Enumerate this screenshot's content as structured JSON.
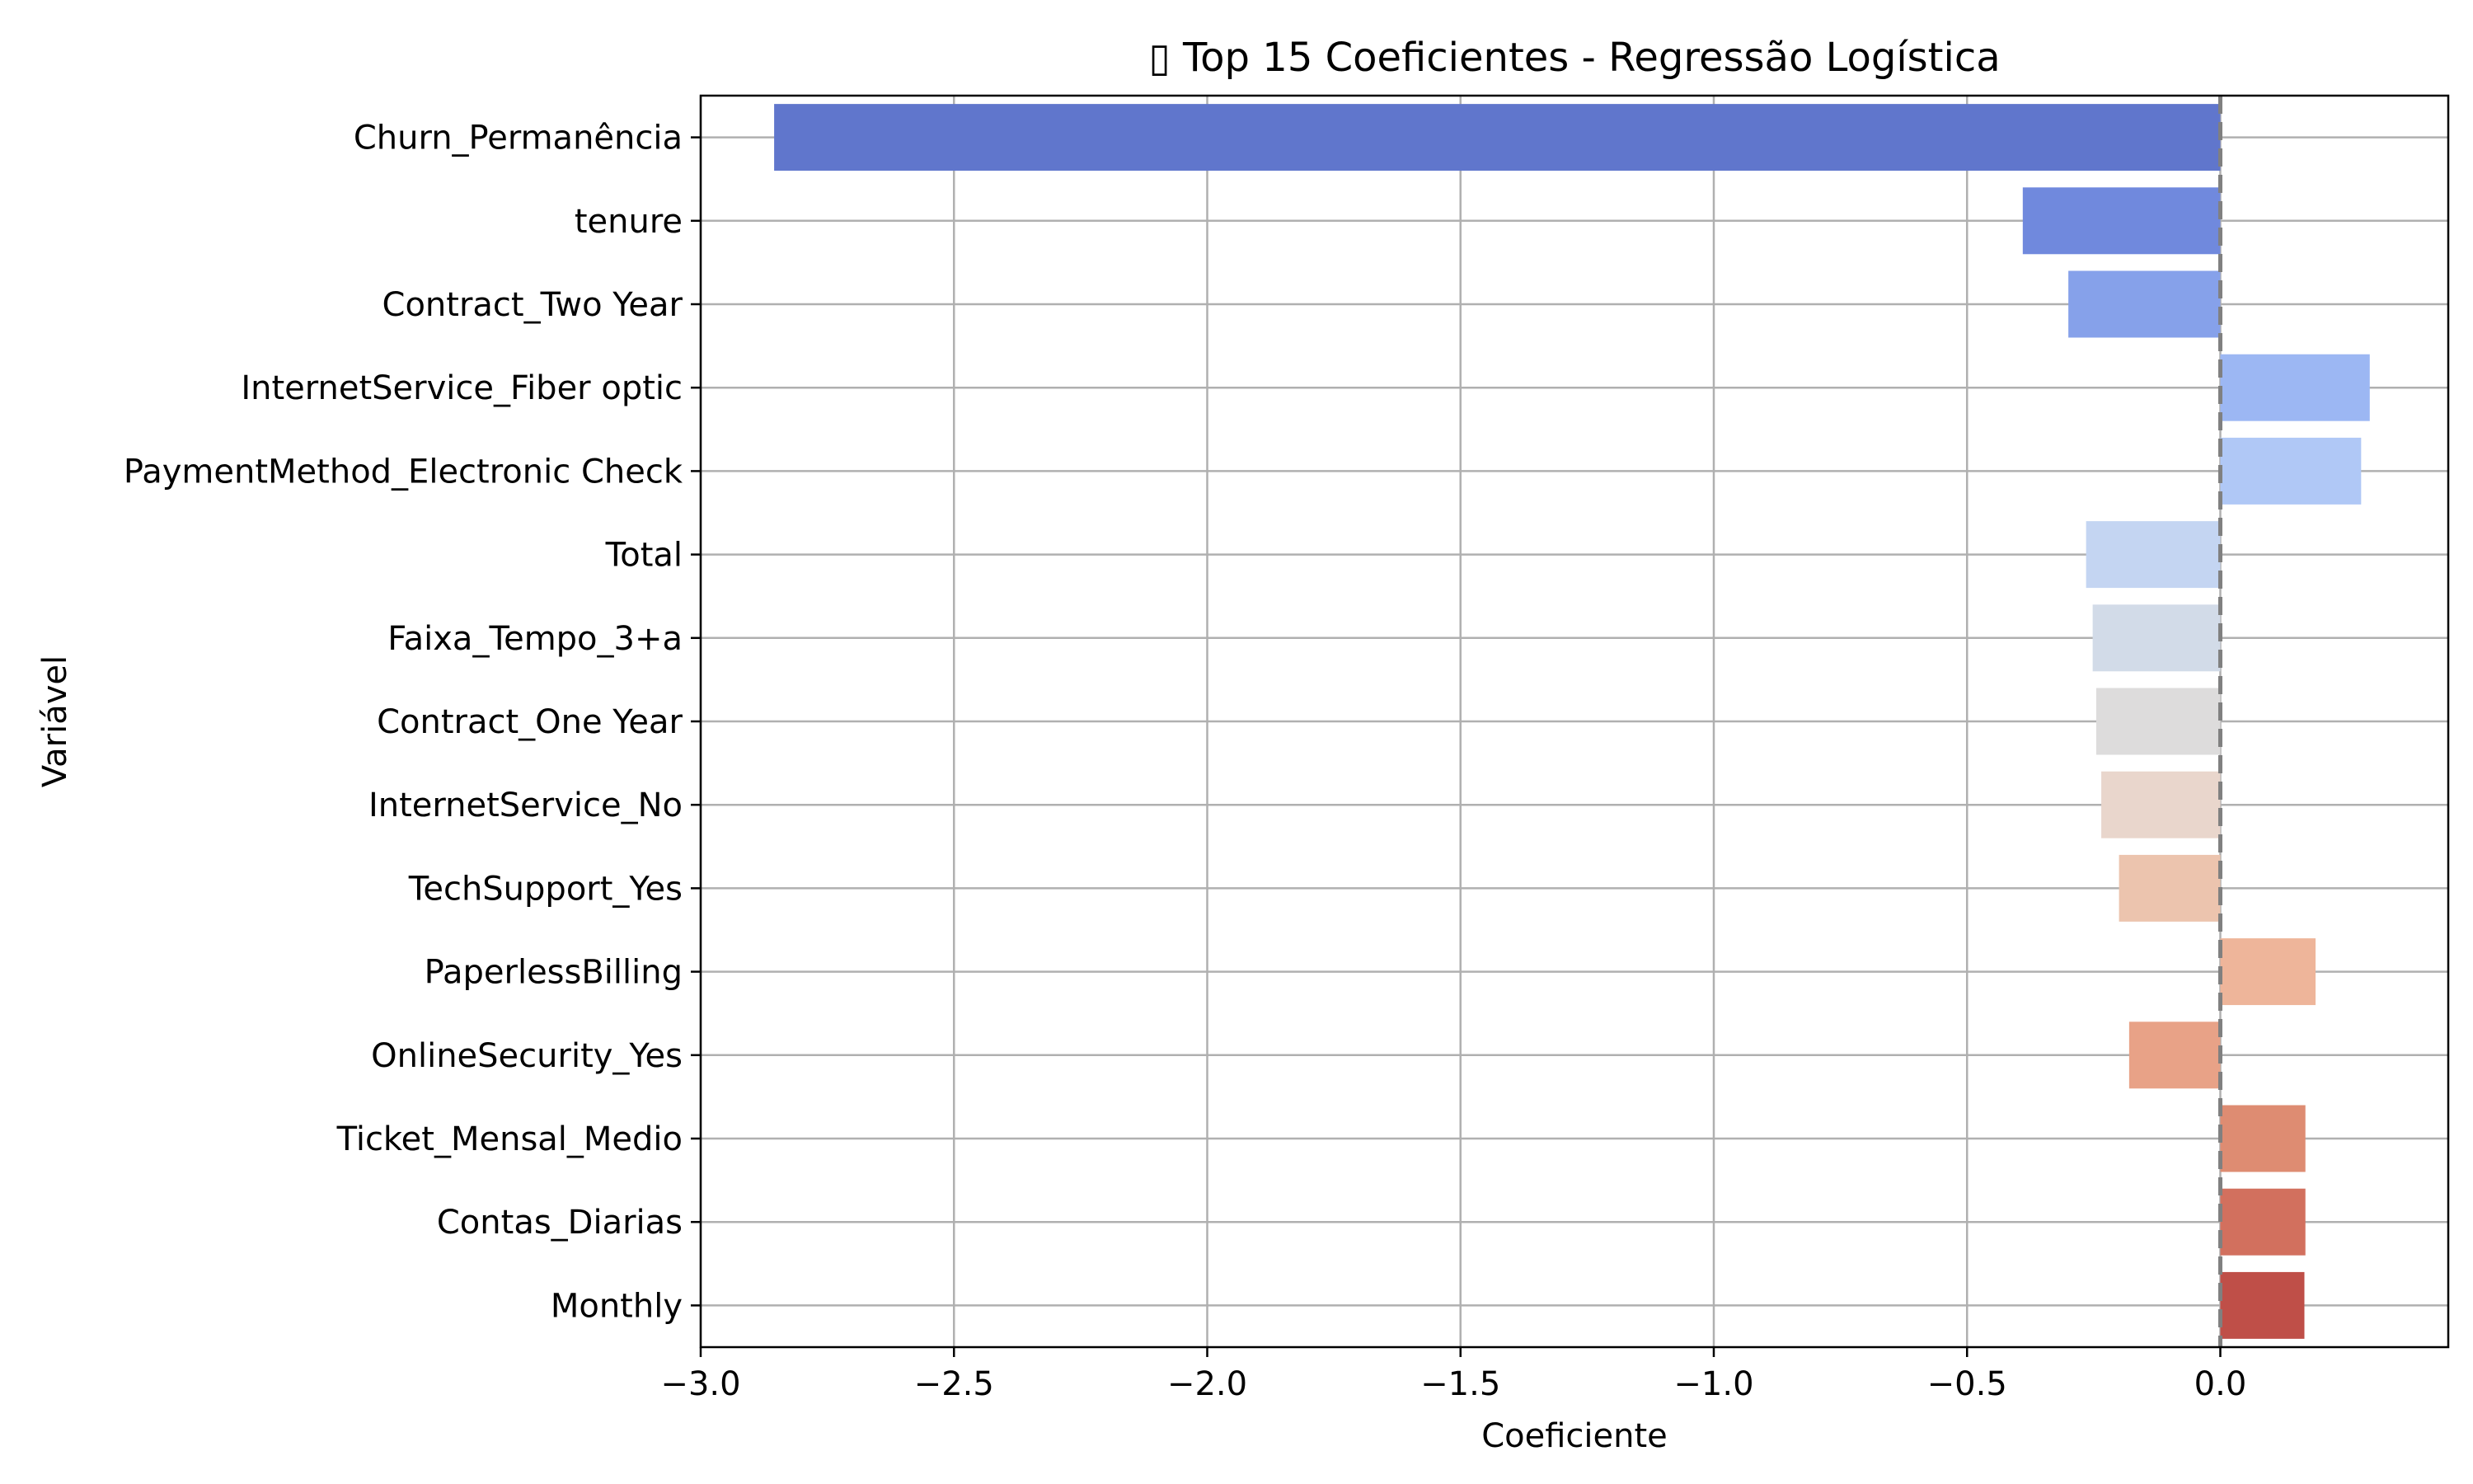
{
  "chart_data": {
    "type": "bar",
    "orientation": "horizontal",
    "title": "▯ Top 15 Coeficientes - Regressão Logística",
    "xlabel": "Coeficiente",
    "ylabel": "Variável",
    "xlim": [
      -3.0,
      0.45
    ],
    "x_ticks": [
      -3.0,
      -2.5,
      -2.0,
      -1.5,
      -1.0,
      -0.5,
      0.0
    ],
    "x_tick_labels": [
      "−3.0",
      "−2.5",
      "−2.0",
      "−1.5",
      "−1.0",
      "−0.5",
      "0.0"
    ],
    "grid": true,
    "reference_line": 0.0,
    "categories": [
      "Churn_Permanência",
      "tenure",
      "Contract_Two Year",
      "InternetService_Fiber optic",
      "PaymentMethod_Electronic Check",
      "Total",
      "Faixa_Tempo_3+a",
      "Contract_One Year",
      "InternetService_No",
      "TechSupport_Yes",
      "PaperlessBilling",
      "OnlineSecurity_Yes",
      "Ticket_Mensal_Medio",
      "Contas_Diarias",
      "Monthly"
    ],
    "values": [
      -2.855,
      -0.39,
      -0.3,
      0.295,
      0.278,
      -0.265,
      -0.252,
      -0.245,
      -0.235,
      -0.2,
      0.188,
      -0.18,
      0.168,
      0.168,
      0.166
    ],
    "colors": [
      "#6076cc",
      "#7089dd",
      "#86a1ea",
      "#9cb7f3",
      "#b0c8f6",
      "#c4d5f2",
      "#d2dbe8",
      "#dddcdc",
      "#e9d6cc",
      "#ecc4ae",
      "#eeb59a",
      "#e8a287",
      "#de8c72",
      "#d2705e",
      "#bf4f48"
    ]
  }
}
